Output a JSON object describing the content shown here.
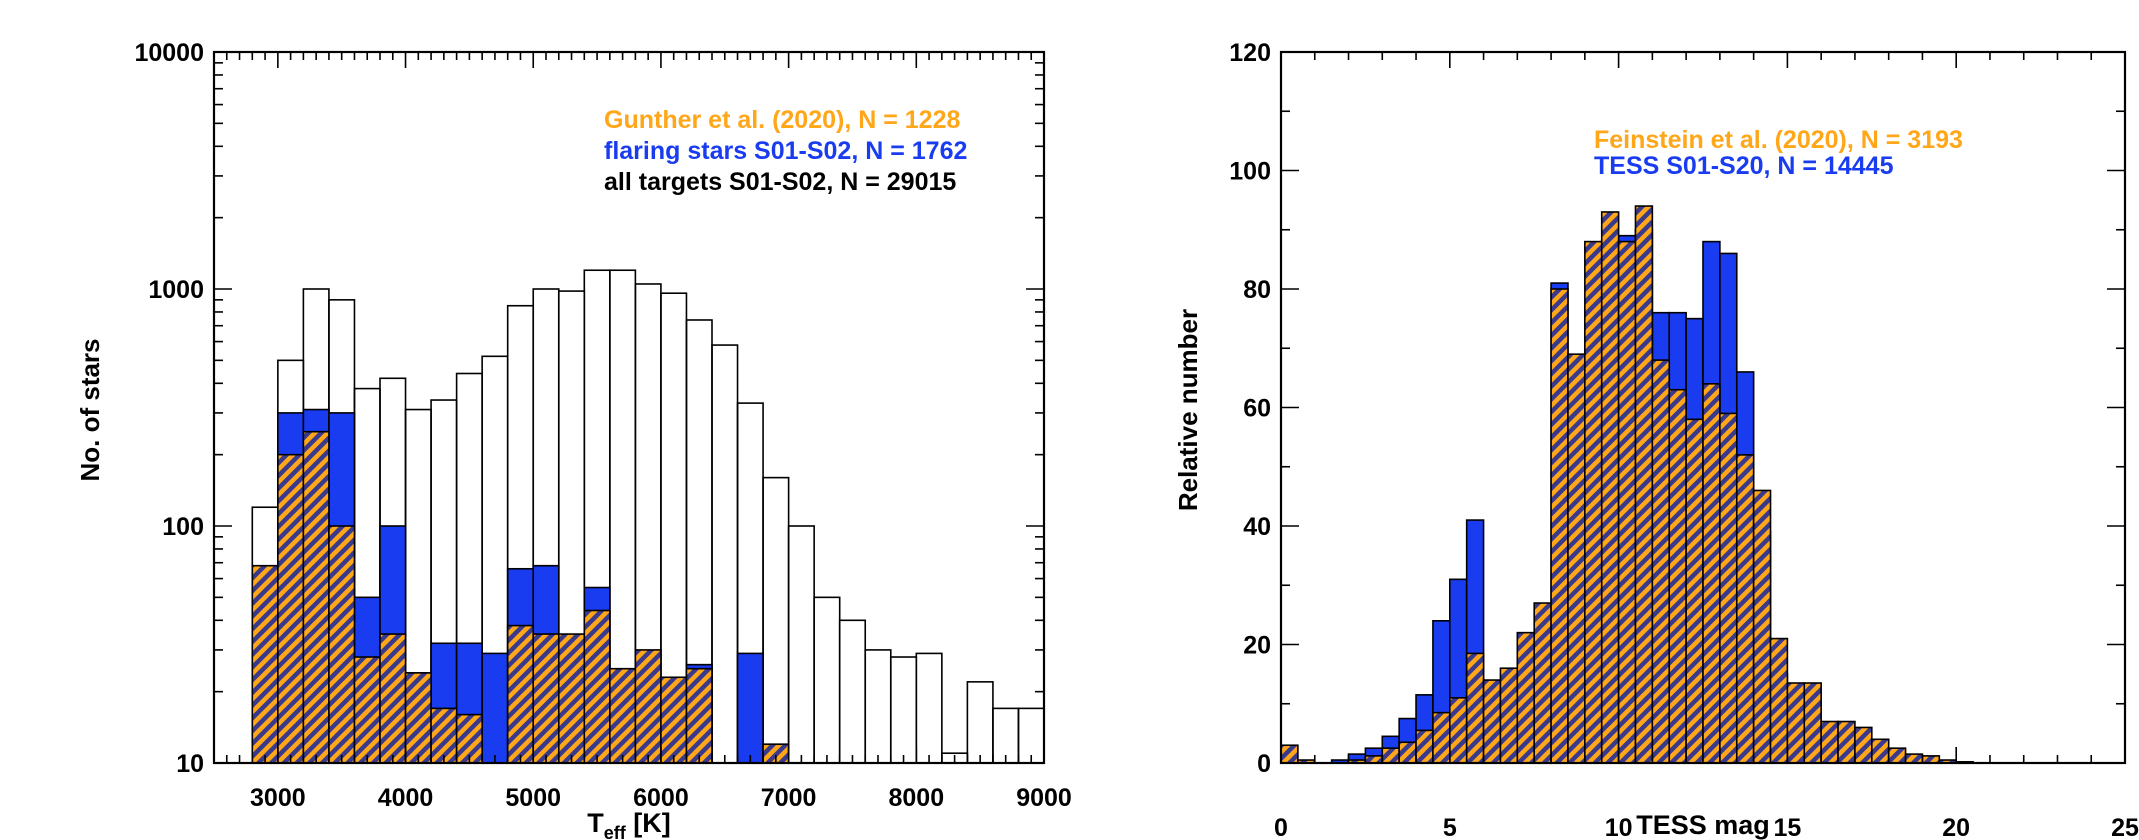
{
  "colors": {
    "orange": "#ffa619",
    "blue": "#1a3cf0",
    "navy": "#3a3a8c",
    "black": "#000000",
    "white": "#ffffff"
  },
  "chart_data": [
    {
      "type": "bar",
      "scale_y": "log",
      "xlabel": "T",
      "xlabel_sub": "eff",
      "xlabel_unit": " [K]",
      "ylabel": "No. of stars",
      "xlim": [
        2500,
        9000
      ],
      "ylim": [
        10,
        10000
      ],
      "x_ticks": [
        3000,
        4000,
        5000,
        6000,
        7000,
        8000,
        9000
      ],
      "y_ticks": [
        10,
        100,
        1000,
        10000
      ],
      "bin_width": 200,
      "x": [
        2900,
        3100,
        3300,
        3500,
        3700,
        3900,
        4100,
        4300,
        4500,
        4700,
        4900,
        5100,
        5300,
        5500,
        5700,
        5900,
        6100,
        6300,
        6500,
        6700,
        6900,
        7100,
        7300,
        7500,
        7700,
        7900,
        8100,
        8300,
        8500,
        8700,
        8900
      ],
      "legend_position": "top-right",
      "legend": [
        {
          "text": "Gunther et al. (2020), N = 1228",
          "color": "orange"
        },
        {
          "text": "flaring stars S01-S02, N = 1762",
          "color": "blue"
        },
        {
          "text": "all targets S01-S02, N = 29015",
          "color": "black"
        }
      ],
      "series": [
        {
          "name": "all targets S01-S02",
          "style": "outline",
          "values": [
            120,
            500,
            1000,
            900,
            380,
            420,
            310,
            340,
            440,
            520,
            850,
            1000,
            980,
            1200,
            1200,
            1050,
            960,
            740,
            580,
            330,
            160,
            100,
            50,
            40,
            30,
            28,
            29,
            11,
            22,
            17,
            17
          ]
        },
        {
          "name": "flaring stars S01-S02",
          "style": "blue",
          "values": [
            0,
            300,
            310,
            300,
            50,
            100,
            24,
            32,
            32,
            29,
            66,
            68,
            26,
            55,
            12,
            0,
            0,
            26,
            0,
            29,
            12,
            0,
            0,
            0,
            0,
            0,
            0,
            0,
            0,
            0,
            0
          ]
        },
        {
          "name": "Gunther et al. (2020)",
          "style": "hatch",
          "values": [
            68,
            200,
            250,
            100,
            28,
            35,
            24,
            17,
            16,
            10,
            38,
            35,
            35,
            44,
            25,
            30,
            23,
            25,
            0,
            0,
            12,
            0,
            0,
            0,
            0,
            0,
            0,
            0,
            0,
            0,
            0
          ]
        }
      ]
    },
    {
      "type": "bar",
      "scale_y": "linear",
      "xlabel": "TESS mag",
      "ylabel": "Relative number",
      "xlim": [
        0,
        25
      ],
      "ylim": [
        0,
        120
      ],
      "x_ticks": [
        0,
        5,
        10,
        15,
        20,
        25
      ],
      "y_ticks": [
        0,
        20,
        40,
        60,
        80,
        100,
        120
      ],
      "bin_width": 0.5,
      "x": [
        0.25,
        0.75,
        1.25,
        1.75,
        2.25,
        2.75,
        3.25,
        3.75,
        4.25,
        4.75,
        5.25,
        5.75,
        6.25,
        6.75,
        7.25,
        7.75,
        8.25,
        8.75,
        9.25,
        9.75,
        10.25,
        10.75,
        11.25,
        11.75,
        12.25,
        12.75,
        13.25,
        13.75,
        14.25,
        14.75,
        15.25,
        15.75,
        16.25,
        16.75,
        17.25,
        17.75,
        18.25,
        18.75,
        19.25,
        19.75,
        20.25,
        20.75
      ],
      "legend_position": "top-center",
      "legend": [
        {
          "text": "Feinstein  et al. (2020), N = 3193",
          "color": "orange"
        },
        {
          "text": "TESS S01-S20, N = 14445",
          "color": "blue"
        }
      ],
      "series": [
        {
          "name": "TESS S01-S20",
          "style": "blue",
          "values": [
            0,
            0,
            0,
            0.5,
            1.5,
            2.5,
            4.5,
            7.5,
            11.5,
            24,
            31,
            41,
            13,
            11,
            14,
            21,
            81,
            65,
            77,
            84,
            89,
            90,
            76,
            76,
            75,
            88,
            86,
            66,
            39,
            15,
            9,
            4.5,
            2.5,
            1.2,
            0.7,
            0.4,
            0.2,
            0.1,
            0,
            0,
            0,
            0
          ]
        },
        {
          "name": "Feinstein et al. (2020)",
          "style": "hatch",
          "values": [
            3,
            0.5,
            0,
            0,
            0.5,
            1.2,
            2.5,
            3.5,
            5.5,
            8.5,
            11,
            18.5,
            14,
            16,
            22,
            27,
            80,
            69,
            88,
            93,
            88,
            94,
            68,
            63,
            58,
            64,
            59,
            52,
            46,
            21,
            13.5,
            13.5,
            7,
            7,
            6,
            4,
            2.5,
            1.5,
            1.2,
            0.5,
            0.2,
            0
          ]
        }
      ]
    }
  ]
}
